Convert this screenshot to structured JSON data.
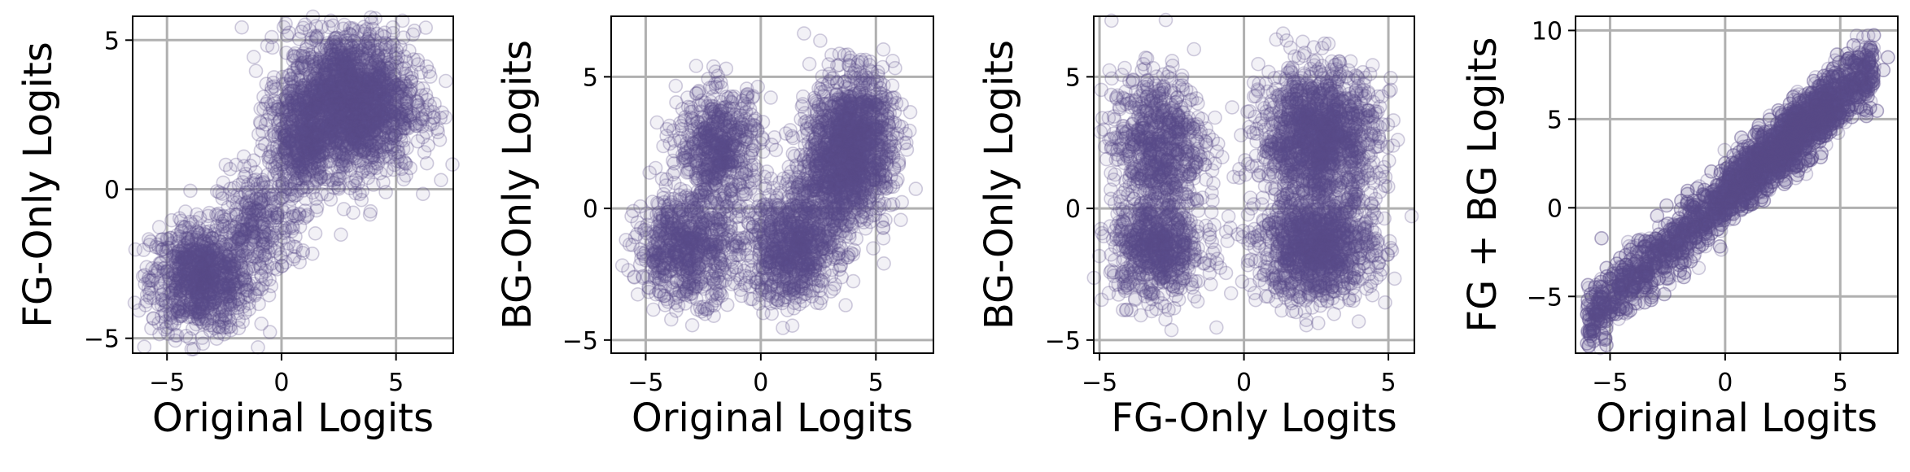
{
  "chart_data": [
    {
      "type": "scatter",
      "xlabel": "Original Logits",
      "ylabel": "FG-Only Logits",
      "xlim": [
        -6.5,
        7.5
      ],
      "ylim": [
        -5.5,
        5.8
      ],
      "xticks": [
        -5,
        0,
        5
      ],
      "yticks": [
        -5,
        0,
        5
      ],
      "grid": true,
      "point_color": "#5b4a8a",
      "clusters": [
        {
          "center": [
            -3.5,
            -3.0
          ],
          "spread": [
            1.1,
            0.9
          ],
          "n": 900
        },
        {
          "center": [
            -1.0,
            -1.2
          ],
          "spread": [
            0.9,
            0.9
          ],
          "n": 300
        },
        {
          "center": [
            3.0,
            2.9
          ],
          "spread": [
            1.4,
            1.2
          ],
          "n": 1900
        },
        {
          "center": [
            0.8,
            1.5
          ],
          "spread": [
            0.7,
            1.0
          ],
          "n": 400
        }
      ]
    },
    {
      "type": "scatter",
      "xlabel": "Original Logits",
      "ylabel": "BG-Only Logits",
      "xlim": [
        -6.5,
        7.5
      ],
      "ylim": [
        -5.5,
        7.3
      ],
      "xticks": [
        -5,
        0,
        5
      ],
      "yticks": [
        -5,
        0,
        5
      ],
      "grid": true,
      "point_color": "#5b4a8a",
      "clusters": [
        {
          "center": [
            -3.2,
            -1.5
          ],
          "spread": [
            1.1,
            1.0
          ],
          "n": 700
        },
        {
          "center": [
            -1.8,
            2.3
          ],
          "spread": [
            0.9,
            1.1
          ],
          "n": 600
        },
        {
          "center": [
            1.3,
            -1.6
          ],
          "spread": [
            1.0,
            1.0
          ],
          "n": 700
        },
        {
          "center": [
            4.0,
            2.5
          ],
          "spread": [
            0.9,
            1.3
          ],
          "n": 1200
        },
        {
          "center": [
            2.8,
            0.5
          ],
          "spread": [
            0.9,
            1.2
          ],
          "n": 400
        }
      ]
    },
    {
      "type": "scatter",
      "xlabel": "FG-Only Logits",
      "ylabel": "BG-Only Logits",
      "xlim": [
        -5.2,
        5.9
      ],
      "ylim": [
        -5.5,
        7.3
      ],
      "xticks": [
        -5,
        0,
        5
      ],
      "yticks": [
        -5,
        0,
        5
      ],
      "grid": true,
      "point_color": "#5b4a8a",
      "clusters": [
        {
          "center": [
            -3.0,
            2.5
          ],
          "spread": [
            0.8,
            1.3
          ],
          "n": 700
        },
        {
          "center": [
            -3.0,
            -1.5
          ],
          "spread": [
            0.8,
            1.0
          ],
          "n": 700
        },
        {
          "center": [
            2.6,
            2.7
          ],
          "spread": [
            1.0,
            1.3
          ],
          "n": 1400
        },
        {
          "center": [
            2.5,
            -1.5
          ],
          "spread": [
            1.0,
            1.0
          ],
          "n": 1100
        }
      ]
    },
    {
      "type": "scatter",
      "xlabel": "Original Logits",
      "ylabel": "FG + BG Logits",
      "xlim": [
        -6.5,
        7.5
      ],
      "ylim": [
        -8.2,
        10.8
      ],
      "xticks": [
        -5,
        0,
        5
      ],
      "yticks": [
        -5,
        0,
        5,
        10
      ],
      "grid": true,
      "point_color": "#5b4a8a",
      "trend": {
        "slope": 1.15,
        "intercept": 0.6,
        "x_range": [
          -6,
          6.5
        ],
        "noise": 0.9
      },
      "n": 3500
    }
  ]
}
